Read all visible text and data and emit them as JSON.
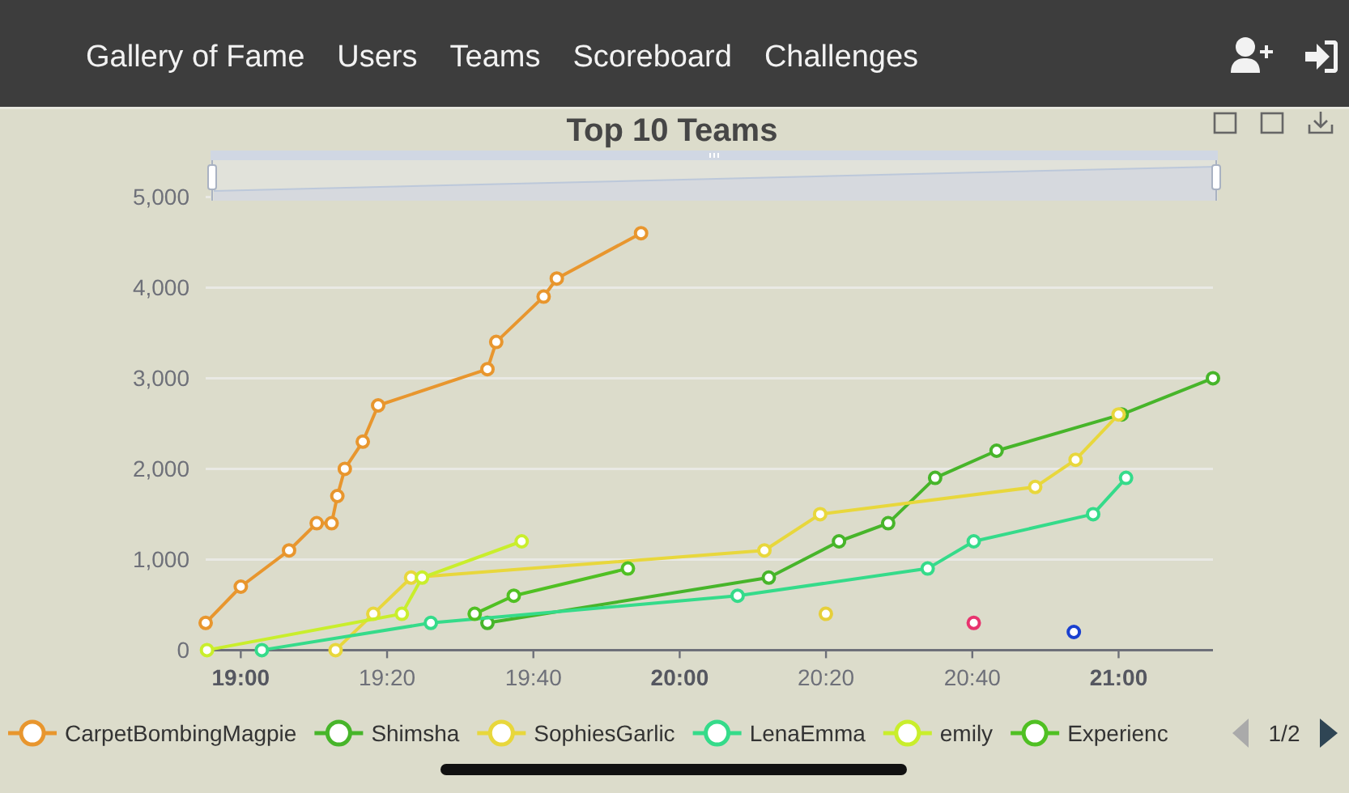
{
  "chart_data": {
    "type": "line",
    "title": "Top 10 Teams",
    "annotations": [
      "Gallery of Fame",
      "Users",
      "Teams",
      "Scoreboard",
      "Challenges",
      "1/2"
    ],
    "xlim": [
      18.92,
      21.215
    ],
    "xticks": [
      {
        "value": 19,
        "label": "19:00"
      },
      {
        "value": 19.333333,
        "label": "19:20"
      },
      {
        "value": 19.666667,
        "label": "19:40"
      },
      {
        "value": 20,
        "label": "20:00"
      },
      {
        "value": 20.333333,
        "label": "20:20"
      },
      {
        "value": 20.666667,
        "label": "20:40"
      },
      {
        "value": 21,
        "label": "21:00"
      }
    ],
    "ylim": [
      0,
      5000
    ],
    "yticks": [
      0,
      {
        "value": 1000,
        "label": "1,000"
      },
      {
        "value": 2000,
        "label": "2,000"
      },
      {
        "value": 3000,
        "label": "3,000"
      },
      {
        "value": 4000,
        "label": "4,000"
      },
      {
        "value": 5000,
        "label": "5,000"
      }
    ],
    "grid": "y",
    "legend": "bottom",
    "marker": "circle",
    "line_style": "solid",
    "series": [
      {
        "name": "CarpetBombingMagpie",
        "color": "#e8962e",
        "x": [
          18.92,
          19.0,
          19.11,
          19.173,
          19.207,
          19.22,
          19.237,
          19.278,
          19.313,
          19.562,
          19.582,
          19.69,
          19.72,
          19.912
        ],
        "values": [
          300,
          700,
          1100,
          1400,
          1400,
          1700,
          2000,
          2300,
          2700,
          3100,
          3400,
          3900,
          4100,
          4600
        ]
      },
      {
        "name": "Shimsha",
        "color": "#47b52a",
        "x": [
          19.562,
          20.203,
          20.363,
          20.475,
          20.582,
          20.722,
          21.007,
          21.215
        ],
        "values": [
          300,
          800,
          1200,
          1400,
          1900,
          2200,
          2600,
          3000
        ]
      },
      {
        "name": "SophiesGarlic",
        "color": "#e8d73c",
        "x": [
          19.216,
          19.302,
          19.388,
          20.193,
          20.32,
          20.81,
          20.902,
          21.0
        ],
        "values": [
          0,
          400,
          800,
          1100,
          1500,
          1800,
          2100,
          2600
        ]
      },
      {
        "name": "LenaEmma",
        "color": "#35db8a",
        "x": [
          19.048,
          19.433,
          20.132,
          20.565,
          20.67,
          20.942,
          21.017
        ],
        "values": [
          0,
          300,
          600,
          900,
          1200,
          1500,
          1900
        ]
      },
      {
        "name": "emily",
        "color": "#c9ee2c",
        "x": [
          18.923,
          19.367,
          19.413,
          19.64
        ],
        "values": [
          0,
          400,
          800,
          1200
        ]
      },
      {
        "name": "Experienc",
        "color": "#50c023",
        "x": [
          19.533,
          19.622,
          19.882
        ],
        "values": [
          400,
          600,
          900
        ]
      },
      {
        "color": "#e6cf3a",
        "x": [
          20.333
        ],
        "values": [
          400
        ]
      },
      {
        "color": "#e8336e",
        "x": [
          20.67
        ],
        "values": [
          300
        ]
      },
      {
        "color": "#1a40d0",
        "x": [
          20.898
        ],
        "values": [
          200
        ]
      }
    ]
  }
}
